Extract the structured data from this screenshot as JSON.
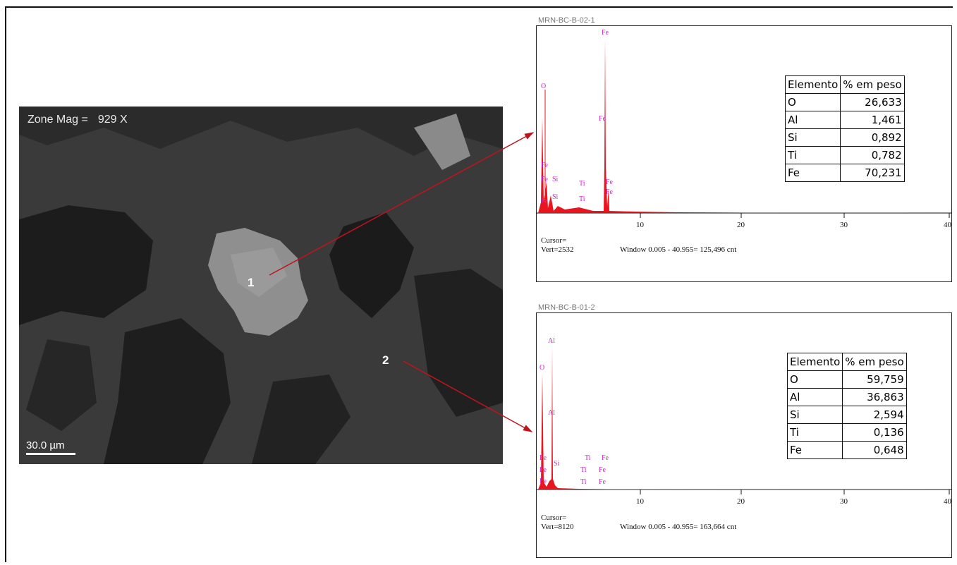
{
  "image": {
    "zone_mag_label": "Zone Mag =",
    "zone_mag_value": "929 X",
    "scale_bar": "30.0 µm",
    "points": [
      "1",
      "2"
    ]
  },
  "spectra": [
    {
      "id": "MRN-BC-B-02-1",
      "cursor": "Cursor=",
      "vert": "Vert=2532",
      "window": "Window 0.005 - 40.955=  125,496 cnt",
      "x_ticks": [
        "10",
        "20",
        "30",
        "40"
      ],
      "peak_labels": [
        "O",
        "Fe",
        "Fe",
        "Fe",
        "Fe",
        "Si",
        "Si",
        "Ti",
        "Ti",
        "Fe",
        "Fe",
        "Fe"
      ],
      "table": {
        "headers": [
          "Elemento",
          "% em peso"
        ],
        "rows": [
          [
            "O",
            "26,633"
          ],
          [
            "Al",
            "1,461"
          ],
          [
            "Si",
            "0,892"
          ],
          [
            "Ti",
            "0,782"
          ],
          [
            "Fe",
            "70,231"
          ]
        ]
      }
    },
    {
      "id": "MRN-BC-B-01-2",
      "cursor": "Cursor=",
      "vert": "Vert=8120",
      "window": "Window 0.005 - 40.955=  163,664 cnt",
      "x_ticks": [
        "10",
        "20",
        "30",
        "40"
      ],
      "peak_labels": [
        "Al",
        "O",
        "Al",
        "Fe",
        "Fe",
        "Fe",
        "Si",
        "Ti",
        "Ti",
        "Ti",
        "Fe",
        "Fe",
        "Fe"
      ],
      "table": {
        "headers": [
          "Elemento",
          "% em peso"
        ],
        "rows": [
          [
            "O",
            "59,759"
          ],
          [
            "Al",
            "36,863"
          ],
          [
            "Si",
            "2,594"
          ],
          [
            "Ti",
            "0,136"
          ],
          [
            "Fe",
            "0,648"
          ]
        ]
      }
    }
  ],
  "colors": {
    "arrow": "#c0141c",
    "spectrum": "#e8141e",
    "peak_label": "#d024c8"
  }
}
